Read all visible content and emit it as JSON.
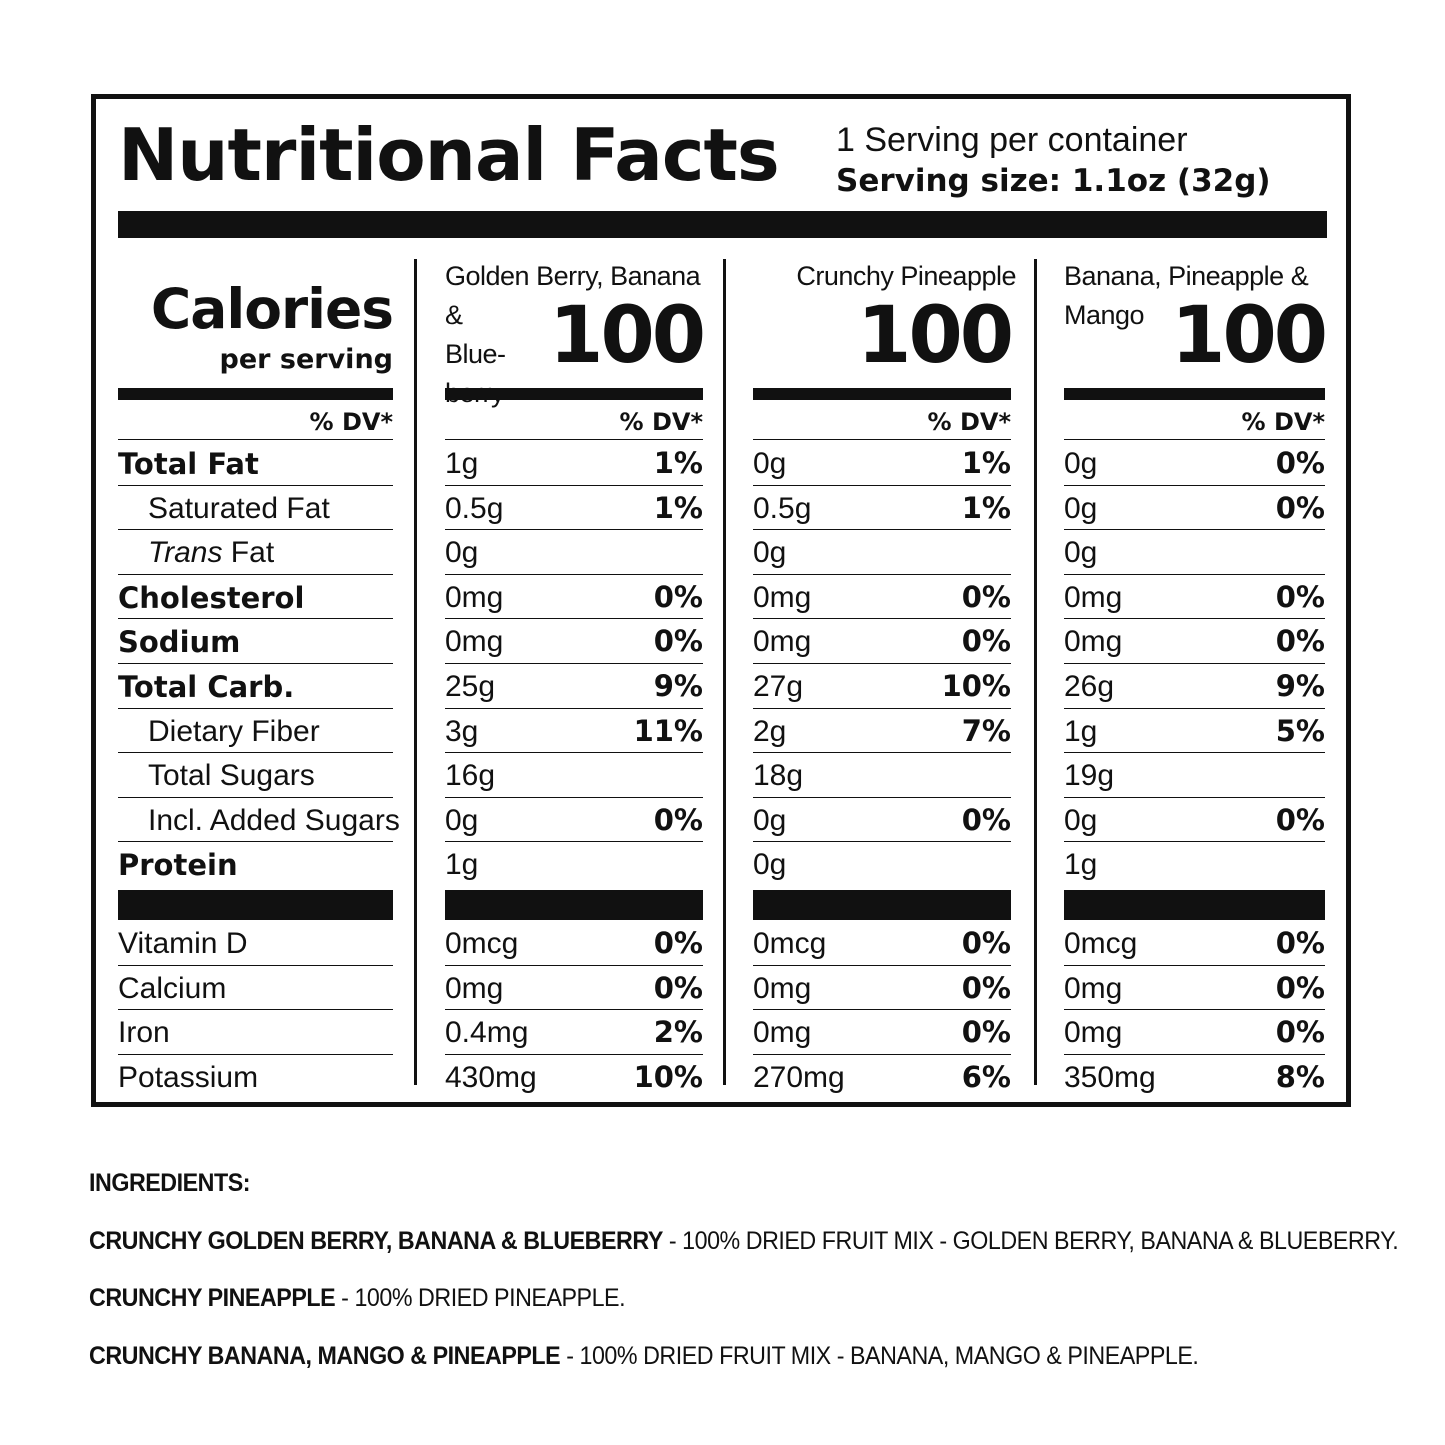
{
  "header": {
    "title": "Nutritional Facts",
    "servings": "1 Serving per container",
    "serving_size": "Serving size: 1.1oz (32g)"
  },
  "labels": {
    "calories": "Calories",
    "per_serving": "per serving",
    "dv_header": "% DV*",
    "nutrients": [
      {
        "text": "Total Fat",
        "bold": true,
        "indent": false
      },
      {
        "text": "Saturated Fat",
        "bold": false,
        "indent": true
      },
      {
        "text": "Trans",
        "suffix": " Fat",
        "bold": false,
        "indent": true,
        "italic_prefix": true
      },
      {
        "text": "Cholesterol",
        "bold": true,
        "indent": false
      },
      {
        "text": "Sodium",
        "bold": true,
        "indent": false
      },
      {
        "text": "Total Carb.",
        "bold": true,
        "indent": false
      },
      {
        "text": "Dietary Fiber",
        "bold": false,
        "indent": true
      },
      {
        "text": "Total Sugars",
        "bold": false,
        "indent": true
      },
      {
        "text": "Incl. Added Sugars",
        "bold": false,
        "indent": true
      },
      {
        "text": "Protein",
        "bold": true,
        "indent": false
      }
    ],
    "vitamins": [
      "Vitamin D",
      "Calcium",
      "Iron",
      "Potassium"
    ]
  },
  "products": [
    {
      "name_lines": [
        "Golden Berry, Banana &",
        "Blue-",
        "berry"
      ],
      "calories": "100",
      "dv_header": "% DV*",
      "nutrients": [
        [
          "1g",
          "1%"
        ],
        [
          "0.5g",
          "1%"
        ],
        [
          "0g",
          ""
        ],
        [
          "0mg",
          "0%"
        ],
        [
          "0mg",
          "0%"
        ],
        [
          "25g",
          "9%"
        ],
        [
          "3g",
          "11%"
        ],
        [
          "16g",
          ""
        ],
        [
          "0g",
          "0%"
        ],
        [
          "1g",
          ""
        ]
      ],
      "vitamins": [
        [
          "0mcg",
          "0%"
        ],
        [
          "0mg",
          "0%"
        ],
        [
          "0.4mg",
          "2%"
        ],
        [
          "430mg",
          "10%"
        ]
      ]
    },
    {
      "name_lines": [
        "Crunchy Pineapple"
      ],
      "calories": "100",
      "dv_header": "% DV*",
      "nutrients": [
        [
          "0g",
          "1%"
        ],
        [
          "0.5g",
          "1%"
        ],
        [
          "0g",
          ""
        ],
        [
          "0mg",
          "0%"
        ],
        [
          "0mg",
          "0%"
        ],
        [
          "27g",
          "10%"
        ],
        [
          "2g",
          "7%"
        ],
        [
          "18g",
          ""
        ],
        [
          "0g",
          "0%"
        ],
        [
          "0g",
          ""
        ]
      ],
      "vitamins": [
        [
          "0mcg",
          "0%"
        ],
        [
          "0mg",
          "0%"
        ],
        [
          "0mg",
          "0%"
        ],
        [
          "270mg",
          "6%"
        ]
      ]
    },
    {
      "name_lines": [
        "Banana, Pineapple &",
        "Mango"
      ],
      "calories": "100",
      "dv_header": "% DV*",
      "nutrients": [
        [
          "0g",
          "0%"
        ],
        [
          "0g",
          "0%"
        ],
        [
          "0g",
          ""
        ],
        [
          "0mg",
          "0%"
        ],
        [
          "0mg",
          "0%"
        ],
        [
          "26g",
          "9%"
        ],
        [
          "1g",
          "5%"
        ],
        [
          "19g",
          ""
        ],
        [
          "0g",
          "0%"
        ],
        [
          "1g",
          ""
        ]
      ],
      "vitamins": [
        [
          "0mcg",
          "0%"
        ],
        [
          "0mg",
          "0%"
        ],
        [
          "0mg",
          "0%"
        ],
        [
          "350mg",
          "8%"
        ]
      ]
    }
  ],
  "ingredients": {
    "heading": "INGREDIENTS:",
    "items": [
      {
        "name": "CRUNCHY GOLDEN BERRY, BANANA & BLUEBERRY",
        "desc": " - 100% DRIED FRUIT MIX - GOLDEN BERRY, BANANA & BLUEBERRY."
      },
      {
        "name": "CRUNCHY PINEAPPLE",
        "desc": " - 100% DRIED PINEAPPLE."
      },
      {
        "name": "CRUNCHY BANANA, MANGO & PINEAPPLE",
        "desc": " - 100% DRIED FRUIT MIX - BANANA, MANGO & PINEAPPLE."
      }
    ]
  }
}
